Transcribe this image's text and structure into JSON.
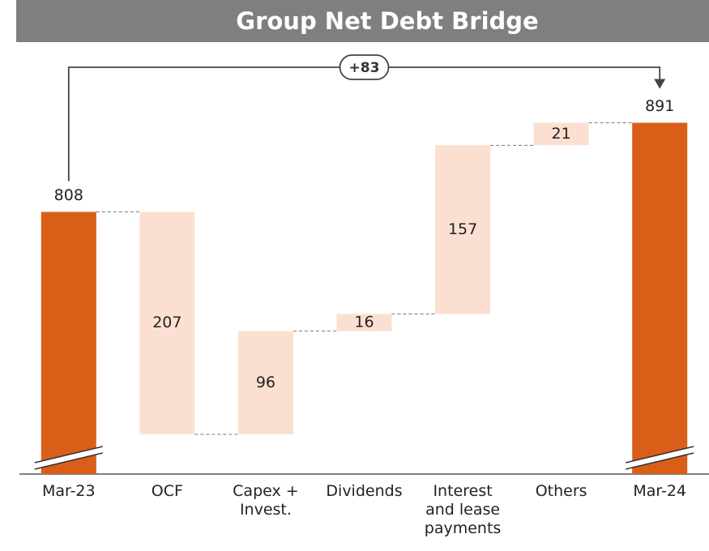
{
  "chart_data": {
    "type": "waterfall",
    "title": "Group Net Debt Bridge",
    "categories": [
      "Mar-23",
      "OCF",
      "Capex + Invest.",
      "Dividends",
      "Interest and lease payments",
      "Others",
      "Mar-24"
    ],
    "values": [
      808,
      -207,
      96,
      16,
      157,
      21,
      891
    ],
    "value_labels": [
      "808",
      "207",
      "96",
      "16",
      "157",
      "21",
      "891"
    ],
    "measures": [
      "absolute",
      "relative",
      "relative",
      "relative",
      "relative",
      "relative",
      "total"
    ],
    "total_color": "#d95f18",
    "change_color": "#fbe0d1",
    "annotation": "+83",
    "ylim": [
      564,
      960
    ]
  }
}
